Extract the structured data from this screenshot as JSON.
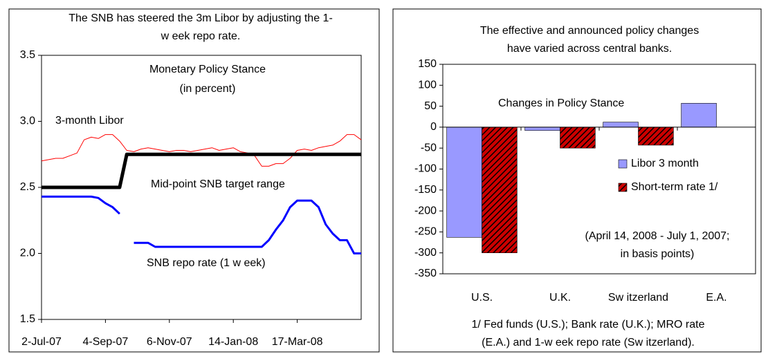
{
  "chart_data": [
    {
      "type": "line",
      "title": [
        "The SNB has steered the 3m Libor by adjusting the 1-",
        "w eek repo rate."
      ],
      "annotations": [
        "Monetary Policy Stance",
        "(in percent)"
      ],
      "categories": [
        "2-Jul-07",
        null,
        null,
        null,
        null,
        null,
        null,
        null,
        null,
        "4-Sep-07",
        null,
        null,
        null,
        null,
        null,
        null,
        null,
        null,
        "6-Nov-07",
        null,
        null,
        null,
        null,
        null,
        null,
        null,
        null,
        "14-Jan-08",
        null,
        null,
        null,
        null,
        null,
        null,
        null,
        null,
        "17-Mar-08",
        null,
        null,
        null,
        null,
        null,
        null,
        null,
        null,
        null
      ],
      "ylim": [
        1.5,
        3.5
      ],
      "yticks": [
        1.5,
        {
          "value": 2,
          "label": "2.0"
        },
        2.5,
        {
          "value": 3,
          "label": "3.0"
        },
        3.5
      ],
      "series": [
        {
          "name": "3-month Libor",
          "color": "#ff0000",
          "width": 1,
          "values": [
            2.7,
            2.71,
            2.72,
            2.72,
            2.74,
            2.76,
            2.86,
            2.88,
            2.87,
            2.9,
            2.9,
            2.85,
            2.78,
            2.77,
            2.79,
            2.8,
            2.79,
            2.78,
            2.77,
            2.78,
            2.78,
            2.77,
            2.78,
            2.79,
            2.8,
            2.78,
            2.79,
            2.8,
            2.77,
            2.76,
            2.74,
            2.66,
            2.66,
            2.68,
            2.68,
            2.72,
            2.78,
            2.79,
            2.78,
            2.8,
            2.81,
            2.82,
            2.85,
            2.9,
            2.9,
            2.86
          ]
        },
        {
          "name": "Mid-point SNB target range",
          "color": "#000000",
          "width": 5,
          "values": [
            2.5,
            2.5,
            2.5,
            2.5,
            2.5,
            2.5,
            2.5,
            2.5,
            2.5,
            2.5,
            2.5,
            2.5,
            2.75,
            2.75,
            2.75,
            2.75,
            2.75,
            2.75,
            2.75,
            2.75,
            2.75,
            2.75,
            2.75,
            2.75,
            2.75,
            2.75,
            2.75,
            2.75,
            2.75,
            2.75,
            2.75,
            2.75,
            2.75,
            2.75,
            2.75,
            2.75,
            2.75,
            2.75,
            2.75,
            2.75,
            2.75,
            2.75,
            2.75,
            2.75,
            2.75,
            2.75
          ]
        },
        {
          "name": "SNB repo rate (1 w eek)",
          "color": "#0000ff",
          "width": 3,
          "values": [
            2.43,
            2.43,
            2.43,
            2.43,
            2.43,
            2.43,
            2.43,
            2.43,
            2.42,
            2.38,
            2.35,
            2.3,
            null,
            2.08,
            2.08,
            2.08,
            2.05,
            2.05,
            2.05,
            2.05,
            2.05,
            2.05,
            2.05,
            2.05,
            2.05,
            2.05,
            2.05,
            2.05,
            2.05,
            2.05,
            2.05,
            2.05,
            2.1,
            2.18,
            2.25,
            2.35,
            2.4,
            2.4,
            2.4,
            2.35,
            2.22,
            2.15,
            2.1,
            2.1,
            2.0,
            2.0
          ]
        }
      ]
    },
    {
      "type": "bar",
      "title": [
        "The effective and announced policy changes",
        "have varied across central banks."
      ],
      "subtitle": "Changes in Policy Stance",
      "annotations": [
        "(April 14, 2008 - July 1, 2007;",
        "in basis points)"
      ],
      "footnote": [
        "1/ Fed funds (U.S.); Bank rate (U.K.); MRO rate",
        "(E.A.) and 1-w eek repo rate (Sw itzerland)."
      ],
      "categories": [
        "U.S.",
        "U.K.",
        "Sw itzerland",
        "E.A."
      ],
      "ylim": [
        -350,
        150
      ],
      "yticks": [
        -350,
        -300,
        -250,
        -200,
        -150,
        -100,
        -50,
        0,
        50,
        100,
        150
      ],
      "legend": "right",
      "series": [
        {
          "name": "Libor 3 month",
          "color": "#9999ff",
          "values": [
            -263,
            -8,
            12,
            57
          ]
        },
        {
          "name": "Short-term rate 1/",
          "color": "#cc0000",
          "pattern": "hatch",
          "values": [
            -300,
            -50,
            -43,
            null
          ]
        }
      ]
    }
  ]
}
